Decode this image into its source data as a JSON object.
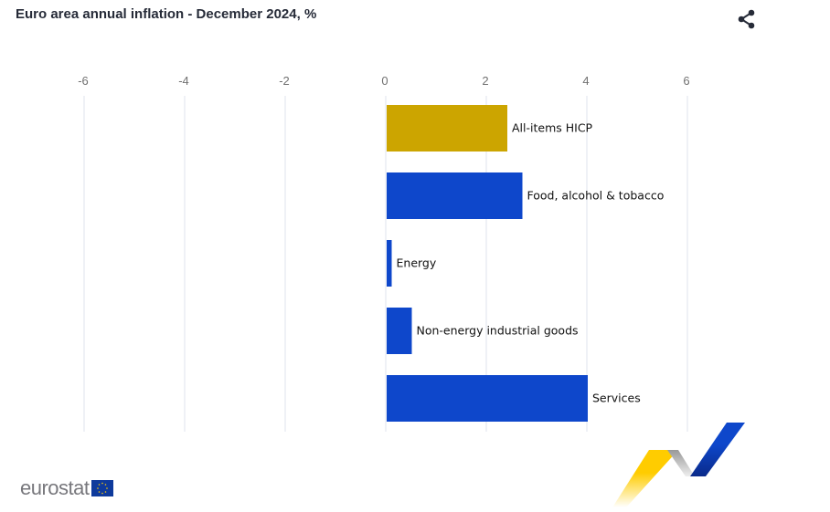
{
  "header": {
    "title": "Euro area annual inflation - December 2024, %",
    "share_icon": "share-icon"
  },
  "chart_data": {
    "type": "bar",
    "orientation": "horizontal",
    "title": "Euro area annual inflation - December 2024, %",
    "categories": [
      "All-items HICP",
      "Food, alcohol & tobacco",
      "Energy",
      "Non-energy industrial goods",
      "Services"
    ],
    "values": [
      2.4,
      2.7,
      0.1,
      0.5,
      4.0
    ],
    "colors": [
      "#cca500",
      "#0e47cb",
      "#0e47cb",
      "#0e47cb",
      "#0e47cb"
    ],
    "xlim": [
      -6,
      7
    ],
    "xticks": [
      "-6",
      "-4",
      "-2",
      "0",
      "2",
      "4",
      "6"
    ],
    "xtick_values": [
      -6,
      -4,
      -2,
      0,
      2,
      4,
      6
    ],
    "xlabel": "",
    "ylabel": "",
    "grid": true,
    "axis_position": "top"
  },
  "footer": {
    "logo_text": "eurostat"
  }
}
